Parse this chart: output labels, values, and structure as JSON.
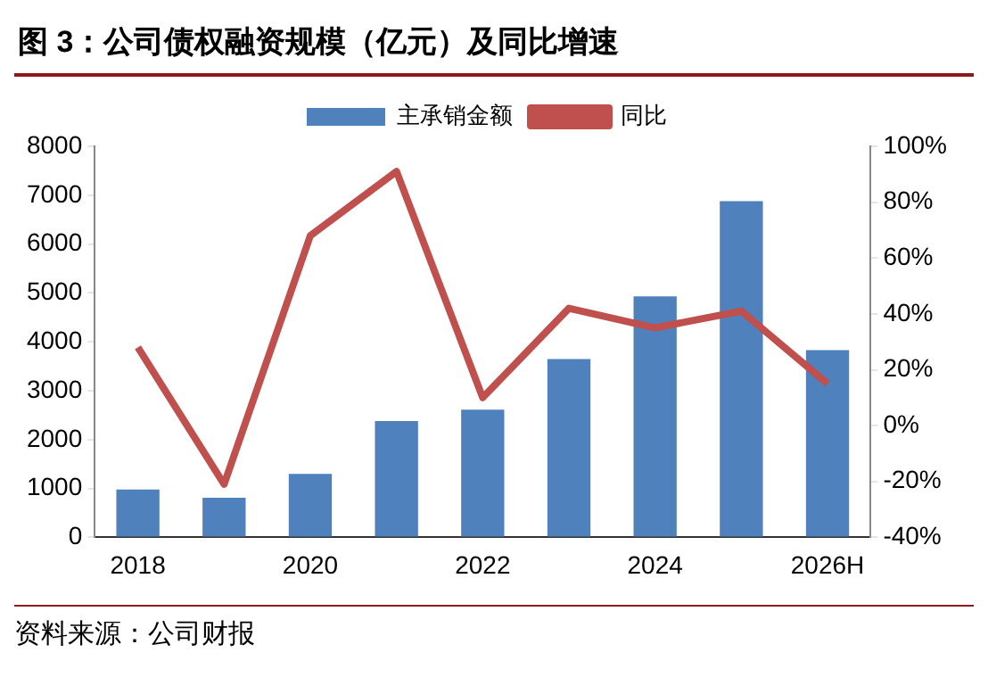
{
  "chart_data": {
    "type": "bar",
    "title": "图 3：公司债权融资规模（亿元）及同比增速",
    "categories": [
      "2018",
      null,
      "2020",
      null,
      "2022",
      null,
      "2024",
      null,
      "2026H"
    ],
    "series": [
      {
        "name": "主承销金额",
        "color": "#4f81bd",
        "values": [
          980,
          810,
          1300,
          2380,
          2610,
          3650,
          4930,
          6880,
          3830
        ]
      },
      {
        "name": "同比",
        "type": "line",
        "axis": "y2",
        "color": "#c0504d",
        "values": [
          28,
          -21,
          68,
          91,
          10,
          42,
          35,
          41,
          15
        ]
      }
    ],
    "ylim": [
      0,
      8000
    ],
    "yticks": [
      0,
      1000,
      2000,
      3000,
      4000,
      5000,
      6000,
      7000,
      8000
    ],
    "y2lim": [
      -40,
      100
    ],
    "y2ticks": [
      {
        "value": -40,
        "label": "-40%"
      },
      {
        "value": -20,
        "label": "-20%"
      },
      {
        "value": 0,
        "label": "0%"
      },
      {
        "value": 20,
        "label": "20%"
      },
      {
        "value": 40,
        "label": "40%"
      },
      {
        "value": 60,
        "label": "60%"
      },
      {
        "value": 80,
        "label": "80%"
      },
      {
        "value": 100,
        "label": "100%"
      }
    ],
    "legend": "top",
    "marker": "none",
    "annotations": [
      "资料来源：公司财报"
    ]
  }
}
